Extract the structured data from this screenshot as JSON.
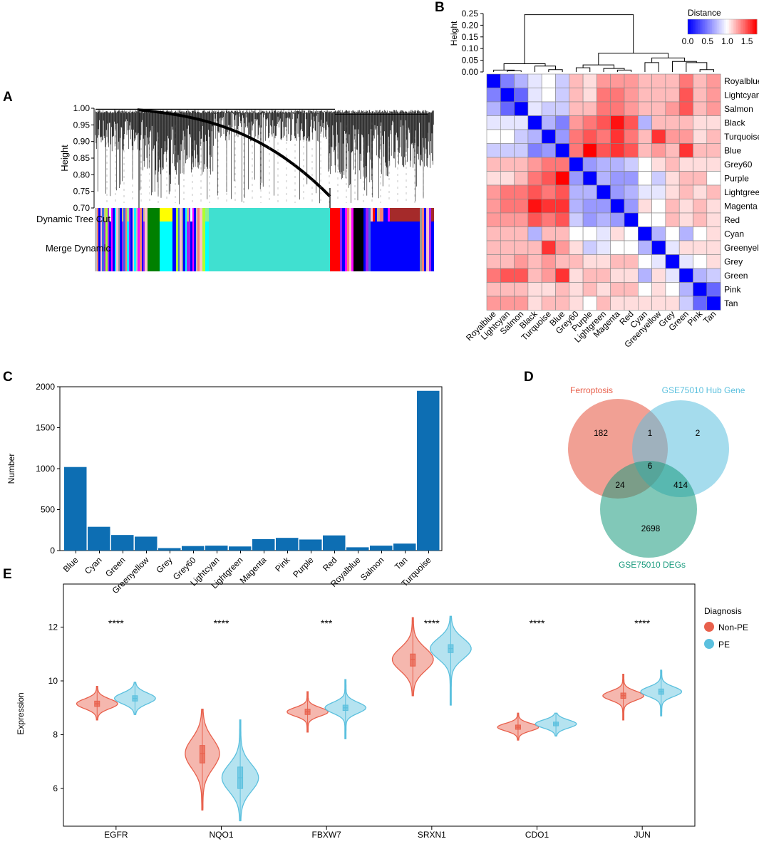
{
  "panels": {
    "A": {
      "letter": "A",
      "ylabel": "Height",
      "yticks": [
        "1.00",
        "0.95",
        "0.90",
        "0.85",
        "0.80",
        "0.75",
        "0.70"
      ],
      "ytick_values": [
        1.0,
        0.95,
        0.9,
        0.85,
        0.8,
        0.75,
        0.7
      ],
      "row1_label": "Dynamic Tree Cut",
      "row2_label": "Merge Dynamic",
      "module_colors": {
        "Royalblue": "#4169e1",
        "Lightcyan": "#e0ffff",
        "Salmon": "#fa8072",
        "Black": "#000000",
        "Turquoise": "#40e0d0",
        "Blue": "#0000ff",
        "Grey60": "#999999",
        "Purple": "#a020f0",
        "Lightgreen": "#90ee90",
        "Magenta": "#ff00ff",
        "Red": "#ff0000",
        "Cyan": "#00ffff",
        "Greenyellow": "#adff2f",
        "Grey": "#bebebe",
        "Green": "#008000",
        "Pink": "#ffc0cb",
        "Tan": "#d2b48c",
        "Brown": "#a52a2a",
        "Yellow": "#ffff00"
      }
    },
    "B": {
      "letter": "B",
      "ylabel": "Height",
      "height_ticks": [
        "0.25",
        "0.20",
        "0.15",
        "0.10",
        "0.05",
        "0.00"
      ],
      "legend_title": "Distance",
      "legend_ticks": [
        "0.0",
        "0.5",
        "1.0",
        "1.5"
      ]
    },
    "C": {
      "letter": "C"
    },
    "D": {
      "letter": "D",
      "sets": [
        "Ferroptosis",
        "GSE75010 Hub Gene",
        "GSE75010 DEGs"
      ],
      "set_colors": [
        "#e8604c",
        "#5bc0de",
        "#1a9b7e"
      ],
      "counts": {
        "ferroptosis_only": "182",
        "hub_only": "2",
        "degs_only": "2698",
        "ferroptosis_hub": "1",
        "ferroptosis_degs": "24",
        "hub_degs": "414",
        "all_three": "6"
      }
    },
    "E": {
      "letter": "E",
      "ylabel": "Expression",
      "legend_title": "Diagnosis"
    }
  },
  "chart_data": [
    {
      "panel": "B",
      "type": "heatmap",
      "title": "",
      "legend_title": "Distance",
      "value_range": [
        0,
        1.75
      ],
      "rows": [
        "Royalblue",
        "Lightcyan",
        "Salmon",
        "Black",
        "Turquoise",
        "Blue",
        "Grey60",
        "Purple",
        "Lightgreen",
        "Magenta",
        "Red",
        "Cyan",
        "Greenyellow",
        "Grey",
        "Green",
        "Pink",
        "Tan"
      ],
      "columns": [
        "Royalblue",
        "Lightcyan",
        "Salmon",
        "Black",
        "Turquoise",
        "Blue",
        "Grey60",
        "Purple",
        "Lightgreen",
        "Magenta",
        "Red",
        "Cyan",
        "Greenyellow",
        "Grey",
        "Green",
        "Pink",
        "Tan"
      ],
      "values": [
        [
          0.0,
          0.5,
          0.7,
          0.9,
          1.0,
          0.8,
          1.2,
          1.1,
          1.3,
          1.3,
          1.3,
          1.2,
          1.2,
          1.2,
          1.4,
          1.2,
          1.3
        ],
        [
          0.5,
          0.0,
          0.4,
          0.9,
          1.0,
          0.8,
          1.2,
          1.1,
          1.4,
          1.4,
          1.3,
          1.2,
          1.2,
          1.2,
          1.5,
          1.2,
          1.3
        ],
        [
          0.7,
          0.4,
          0.0,
          0.9,
          0.8,
          0.8,
          1.2,
          1.2,
          1.4,
          1.4,
          1.3,
          1.2,
          1.2,
          1.3,
          1.5,
          1.2,
          1.3
        ],
        [
          0.9,
          0.9,
          0.9,
          0.0,
          0.7,
          0.5,
          1.3,
          1.4,
          1.5,
          1.7,
          1.5,
          0.7,
          1.2,
          1.2,
          1.2,
          1.1,
          1.1
        ],
        [
          1.0,
          1.0,
          0.8,
          0.7,
          0.0,
          0.6,
          1.4,
          1.5,
          1.4,
          1.6,
          1.4,
          1.2,
          1.6,
          1.3,
          1.3,
          1.1,
          1.2
        ],
        [
          0.8,
          0.8,
          0.8,
          0.5,
          0.6,
          0.0,
          1.4,
          1.8,
          1.5,
          1.6,
          1.5,
          1.2,
          1.3,
          1.2,
          1.6,
          1.2,
          1.2
        ],
        [
          1.2,
          1.2,
          1.2,
          1.3,
          1.4,
          1.4,
          0.0,
          0.6,
          0.7,
          0.7,
          0.8,
          1.0,
          1.1,
          1.2,
          1.1,
          1.1,
          1.1
        ],
        [
          1.1,
          1.1,
          1.2,
          1.4,
          1.5,
          1.8,
          0.6,
          0.0,
          0.7,
          0.6,
          0.6,
          1.0,
          0.8,
          1.1,
          1.2,
          1.2,
          1.0
        ],
        [
          1.3,
          1.4,
          1.4,
          1.5,
          1.4,
          1.5,
          0.7,
          0.7,
          0.0,
          0.6,
          0.7,
          0.9,
          0.9,
          1.1,
          1.2,
          1.1,
          1.2
        ],
        [
          1.3,
          1.4,
          1.4,
          1.7,
          1.6,
          1.6,
          0.7,
          0.6,
          0.6,
          0.0,
          0.6,
          1.1,
          1.0,
          1.2,
          1.1,
          1.2,
          1.1
        ],
        [
          1.3,
          1.3,
          1.3,
          1.5,
          1.4,
          1.5,
          0.8,
          0.6,
          0.7,
          0.6,
          0.0,
          1.0,
          1.0,
          1.2,
          1.1,
          1.2,
          1.1
        ],
        [
          1.2,
          1.2,
          1.2,
          0.7,
          1.2,
          1.2,
          1.0,
          1.0,
          0.9,
          1.1,
          1.0,
          0.0,
          0.7,
          1.0,
          0.7,
          1.0,
          1.1
        ],
        [
          1.2,
          1.2,
          1.2,
          1.2,
          1.6,
          1.3,
          1.1,
          0.8,
          0.9,
          1.0,
          1.0,
          0.7,
          0.0,
          0.9,
          1.1,
          1.1,
          1.1
        ],
        [
          1.2,
          1.2,
          1.3,
          1.2,
          1.3,
          1.2,
          1.2,
          1.1,
          1.1,
          1.2,
          1.2,
          1.0,
          0.9,
          0.0,
          0.9,
          1.0,
          1.1
        ],
        [
          1.4,
          1.5,
          1.5,
          1.2,
          1.3,
          1.6,
          1.1,
          1.2,
          1.2,
          1.1,
          1.1,
          0.7,
          1.1,
          0.9,
          0.0,
          0.7,
          0.8
        ],
        [
          1.2,
          1.2,
          1.2,
          1.1,
          1.1,
          1.2,
          1.1,
          1.2,
          1.1,
          1.2,
          1.2,
          1.0,
          1.1,
          1.0,
          0.7,
          0.0,
          0.4
        ],
        [
          1.3,
          1.3,
          1.3,
          1.1,
          1.2,
          1.2,
          1.1,
          1.0,
          1.2,
          1.1,
          1.1,
          1.1,
          1.1,
          1.1,
          0.8,
          0.4,
          0.0
        ]
      ]
    },
    {
      "panel": "C",
      "type": "bar",
      "title": "",
      "xlabel": "",
      "ylabel": "Number",
      "categories": [
        "Blue",
        "Cyan",
        "Green",
        "Greenyellow",
        "Grey",
        "Grey60",
        "Lightcyan",
        "Lightgreen",
        "Magenta",
        "Pink",
        "Purple",
        "Red",
        "Royalblue",
        "Salmon",
        "Tan",
        "Turquoise"
      ],
      "values": [
        1020,
        290,
        190,
        170,
        30,
        55,
        60,
        50,
        140,
        155,
        135,
        185,
        40,
        60,
        85,
        1950
      ],
      "ylim": [
        0,
        2000
      ],
      "yticks": [
        0,
        500,
        1000,
        1500,
        2000
      ],
      "color": "#0d6eb3"
    },
    {
      "panel": "E",
      "type": "violin",
      "title": "",
      "xlabel": "",
      "ylabel": "Expression",
      "categories": [
        "EGFR",
        "NQO1",
        "FBXW7",
        "SRXN1",
        "CDO1",
        "JUN"
      ],
      "ylim": [
        4.6,
        13.6
      ],
      "yticks": [
        6,
        8,
        10,
        12
      ],
      "significance": [
        "****",
        "****",
        "***",
        "****",
        "****",
        "****"
      ],
      "series": [
        {
          "name": "Non-PE",
          "color": "#e8604c",
          "medians": [
            9.15,
            7.3,
            8.85,
            10.8,
            8.28,
            9.45
          ],
          "q1": [
            9.05,
            6.95,
            8.75,
            10.55,
            8.2,
            9.35
          ],
          "q3": [
            9.25,
            7.6,
            8.95,
            11.0,
            8.36,
            9.55
          ],
          "mins": [
            8.55,
            5.2,
            8.1,
            9.45,
            7.8,
            8.55
          ],
          "maxs": [
            9.8,
            8.95,
            9.6,
            12.35,
            8.8,
            10.25
          ],
          "spreads": [
            0.18,
            0.55,
            0.16,
            0.42,
            0.14,
            0.17
          ]
        },
        {
          "name": "PE",
          "color": "#5bc0de",
          "medians": [
            9.35,
            6.4,
            9.0,
            11.2,
            8.4,
            9.6
          ],
          "q1": [
            9.25,
            6.0,
            8.9,
            11.05,
            8.33,
            9.5
          ],
          "q3": [
            9.45,
            6.8,
            9.1,
            11.35,
            8.47,
            9.7
          ],
          "mins": [
            8.75,
            4.8,
            7.85,
            9.1,
            7.95,
            8.7
          ],
          "maxs": [
            9.95,
            8.55,
            10.05,
            12.4,
            8.8,
            10.4
          ],
          "spreads": [
            0.2,
            0.5,
            0.2,
            0.38,
            0.15,
            0.18
          ]
        }
      ]
    }
  ]
}
